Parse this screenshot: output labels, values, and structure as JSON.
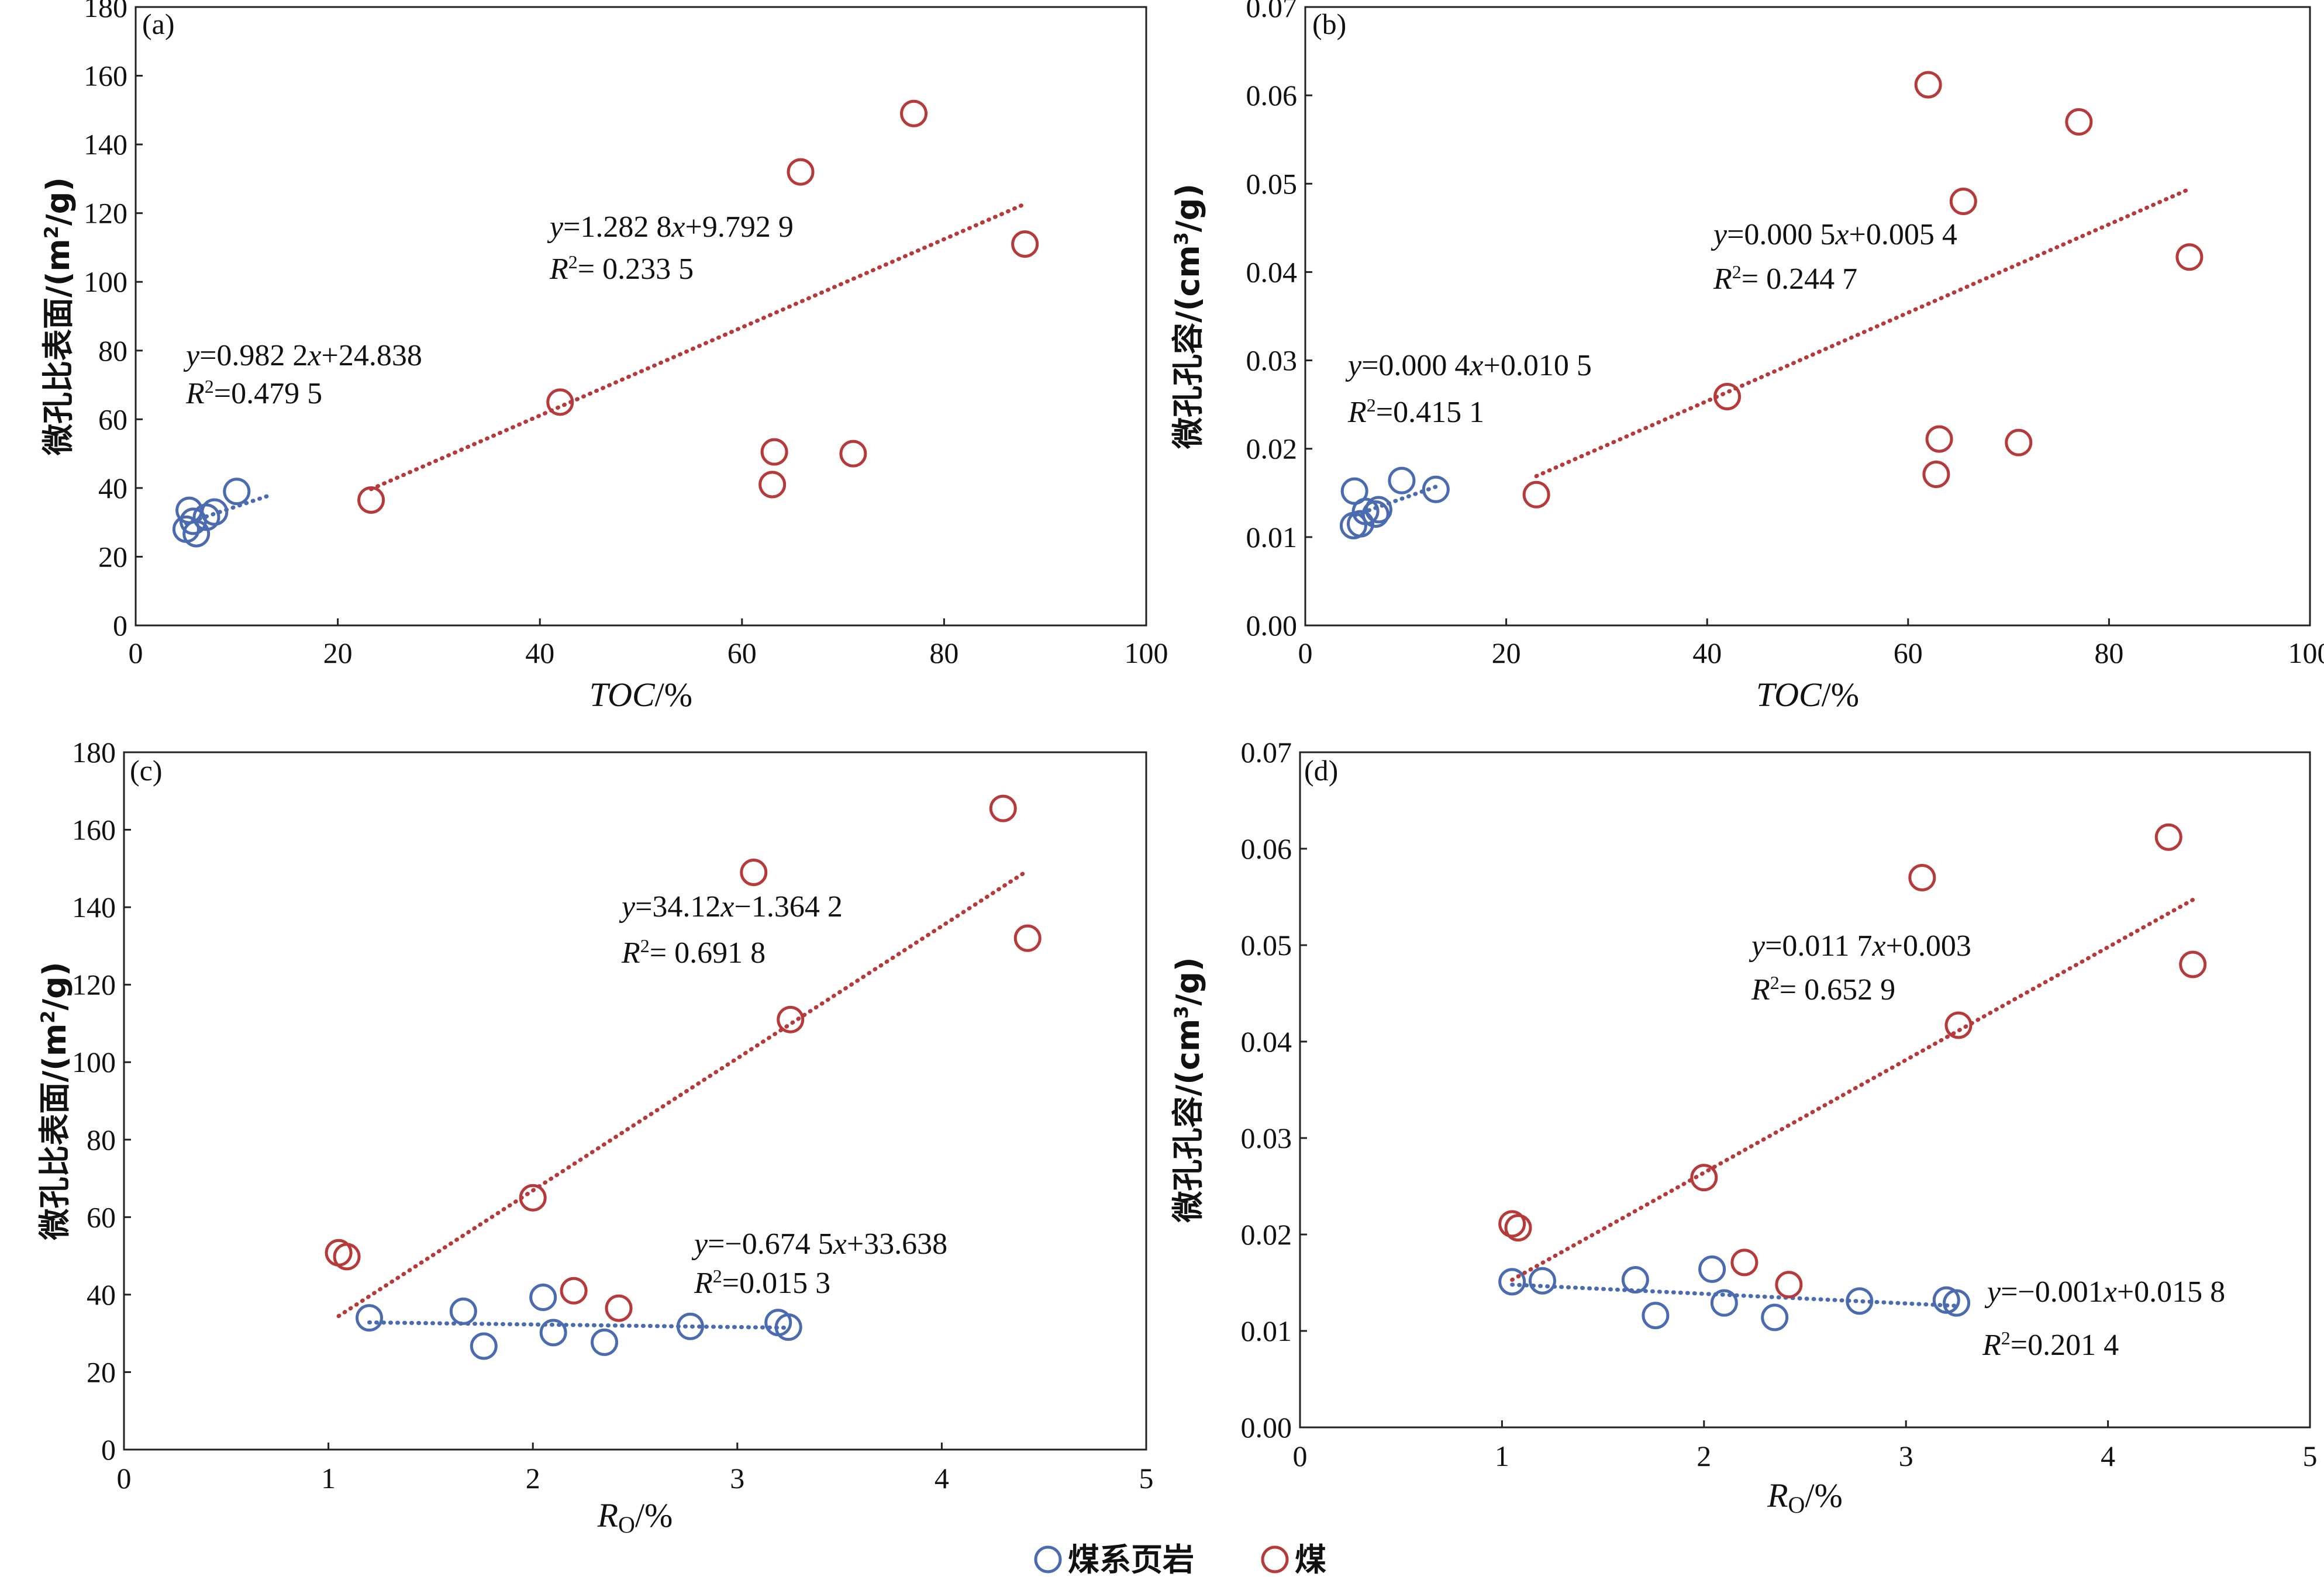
{
  "chart_data": [
    {
      "panel": "(a)",
      "type": "scatter",
      "xlabel": "TOC/%",
      "ylabel": "微孔比表面/(m²/g)",
      "xlim": [
        0,
        100
      ],
      "ylim": [
        0,
        180
      ],
      "xticks": [
        0,
        20,
        40,
        60,
        80,
        100
      ],
      "yticks": [
        0,
        20,
        40,
        60,
        80,
        100,
        120,
        140,
        160,
        180
      ],
      "series": [
        {
          "name": "煤系页岩",
          "color": "#4a6bb0",
          "x": [
            5.3,
            5.0,
            6.0,
            5.7,
            7.0,
            7.8,
            10.0
          ],
          "y": [
            33.5,
            28.0,
            26.7,
            30.3,
            31.5,
            33.0,
            39.0
          ],
          "trendline": {
            "x": [
              5,
              13
            ],
            "y": [
              29.75,
              37.61
            ],
            "equation": "y=0.982 2x+24.838",
            "r2": "R²=0.479 5"
          }
        },
        {
          "name": "煤",
          "color": "#b63a3a",
          "x": [
            23.3,
            42.0,
            63.0,
            63.2,
            65.8,
            71.0,
            77.0,
            88.0
          ],
          "y": [
            36.5,
            65.0,
            41.0,
            50.5,
            132.0,
            50.0,
            149.0,
            111.0
          ],
          "trendline": {
            "x": [
              23.3,
              88
            ],
            "y": [
              39.68,
              122.68
            ],
            "equation": "y=1.282 8x+9.792 9",
            "r2": "R²= 0.233 5"
          }
        }
      ]
    },
    {
      "panel": "(b)",
      "type": "scatter",
      "xlabel": "TOC/%",
      "ylabel": "微孔孔容/(cm³/g)",
      "xlim": [
        0,
        100
      ],
      "ylim": [
        0,
        0.07
      ],
      "xticks": [
        0,
        20,
        40,
        60,
        80,
        100
      ],
      "yticks": [
        0,
        0.01,
        0.02,
        0.03,
        0.04,
        0.05,
        0.06,
        0.07
      ],
      "series": [
        {
          "name": "煤系页岩",
          "color": "#4a6bb0",
          "x": [
            4.9,
            4.8,
            5.5,
            6.0,
            7.0,
            7.3,
            9.6,
            13.0
          ],
          "y": [
            0.0152,
            0.0113,
            0.0115,
            0.0129,
            0.0126,
            0.0131,
            0.0164,
            0.0154
          ],
          "trendline": {
            "x": [
              5,
              13
            ],
            "y": [
              0.0125,
              0.0157
            ],
            "equation": "y=0.000 4x+0.010 5",
            "r2": "R²=0.415 1"
          }
        },
        {
          "name": "煤",
          "color": "#b63a3a",
          "x": [
            23.0,
            42.0,
            62.0,
            62.8,
            63.1,
            65.5,
            71.0,
            77.0,
            88.0
          ],
          "y": [
            0.0148,
            0.0259,
            0.0612,
            0.0171,
            0.0211,
            0.048,
            0.0207,
            0.057,
            0.0417
          ],
          "trendline": {
            "x": [
              23,
              88
            ],
            "y": [
              0.0169,
              0.0494
            ],
            "equation": "y=0.000 5x+0.005 4",
            "r2": "R²= 0.244 7"
          }
        }
      ]
    },
    {
      "panel": "(c)",
      "type": "scatter",
      "xlabel": "Ro/%",
      "ylabel": "微孔比表面/(m²/g)",
      "xlim": [
        0,
        5
      ],
      "ylim": [
        0,
        180
      ],
      "xticks": [
        0,
        1,
        2,
        3,
        4,
        5
      ],
      "yticks": [
        0,
        20,
        40,
        60,
        80,
        100,
        120,
        140,
        160,
        180
      ],
      "series": [
        {
          "name": "煤系页岩",
          "color": "#4a6bb0",
          "x": [
            1.2,
            1.66,
            1.76,
            2.05,
            2.1,
            2.35,
            2.77,
            3.2,
            3.25
          ],
          "y": [
            34.0,
            35.7,
            26.7,
            39.3,
            30.2,
            27.7,
            31.8,
            32.8,
            31.6
          ],
          "trendline": {
            "x": [
              1.2,
              3.25
            ],
            "y": [
              32.83,
              31.45
            ],
            "equation": "y=−0.674 5x+33.638",
            "r2": "R²=0.015 3"
          }
        },
        {
          "name": "煤",
          "color": "#b63a3a",
          "x": [
            1.05,
            1.09,
            2.0,
            2.2,
            2.42,
            3.08,
            3.26,
            4.3,
            4.42
          ],
          "y": [
            50.8,
            49.8,
            65.0,
            41.0,
            36.5,
            149.0,
            111.0,
            165.5,
            132.0
          ],
          "trendline": {
            "x": [
              1.05,
              4.42
            ],
            "y": [
              34.46,
              149.45
            ],
            "equation": "y=34.12x−1.364 2",
            "r2": "R²= 0.691 8"
          }
        }
      ]
    },
    {
      "panel": "(d)",
      "type": "scatter",
      "xlabel": "Ro/%",
      "ylabel": "微孔孔容/(cm³/g)",
      "xlim": [
        0,
        5
      ],
      "ylim": [
        0,
        0.07
      ],
      "xticks": [
        0,
        1,
        2,
        3,
        4,
        5
      ],
      "yticks": [
        0,
        0.01,
        0.02,
        0.03,
        0.04,
        0.05,
        0.06,
        0.07
      ],
      "series": [
        {
          "name": "煤系页岩",
          "color": "#4a6bb0",
          "x": [
            1.05,
            1.2,
            1.66,
            1.76,
            2.04,
            2.1,
            2.35,
            2.77,
            3.2,
            3.25
          ],
          "y": [
            0.0151,
            0.0152,
            0.0153,
            0.0116,
            0.0164,
            0.0129,
            0.0114,
            0.0131,
            0.0132,
            0.0129
          ],
          "trendline": {
            "x": [
              1.05,
              3.25
            ],
            "y": [
              0.0148,
              0.0126
            ],
            "equation": "y=−0.001x+0.015 8",
            "r2": "R²=0.201 4"
          }
        },
        {
          "name": "煤",
          "color": "#b63a3a",
          "x": [
            1.05,
            1.08,
            2.0,
            2.2,
            2.42,
            3.08,
            3.26,
            4.3,
            4.42
          ],
          "y": [
            0.0211,
            0.0207,
            0.0259,
            0.0171,
            0.0148,
            0.057,
            0.0417,
            0.0612,
            0.048
          ],
          "trendline": {
            "x": [
              1.05,
              4.42
            ],
            "y": [
              0.0153,
              0.0547
            ],
            "equation": "y=0.011 7x+0.003",
            "r2": "R²= 0.652 9"
          }
        }
      ]
    }
  ],
  "legend": [
    {
      "label": "煤系页岩",
      "color": "#4a6bb0"
    },
    {
      "label": "煤",
      "color": "#b63a3a"
    }
  ]
}
